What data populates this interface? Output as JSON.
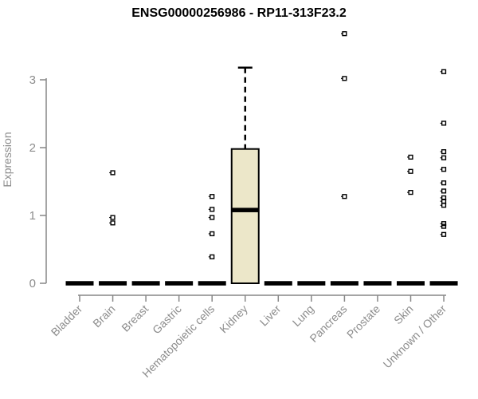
{
  "chart_data": {
    "type": "boxplot",
    "title": "ENSG00000256986 - RP11-313F23.2",
    "ylabel": "Expression",
    "xlabel": "",
    "ylim": [
      0,
      3.75
    ],
    "yticks": [
      0,
      1,
      2,
      3
    ],
    "grid": false,
    "legend": "none",
    "categories": [
      "Bladder",
      "Brain",
      "Breast",
      "Gastric",
      "Hematopoietic cells",
      "Kidney",
      "Liver",
      "Lung",
      "Pancreas",
      "Prostate",
      "Skin",
      "Unknown / Other"
    ],
    "series": [
      {
        "category": "Bladder",
        "low": 0,
        "q1": 0,
        "median": 0,
        "q3": 0,
        "high": 0,
        "outliers": []
      },
      {
        "category": "Brain",
        "low": 0,
        "q1": 0,
        "median": 0,
        "q3": 0,
        "high": 0,
        "outliers": [
          1.63,
          0.97,
          0.89
        ]
      },
      {
        "category": "Breast",
        "low": 0,
        "q1": 0,
        "median": 0,
        "q3": 0,
        "high": 0,
        "outliers": []
      },
      {
        "category": "Gastric",
        "low": 0,
        "q1": 0,
        "median": 0,
        "q3": 0,
        "high": 0,
        "outliers": []
      },
      {
        "category": "Hematopoietic cells",
        "low": 0,
        "q1": 0,
        "median": 0,
        "q3": 0,
        "high": 0,
        "outliers": [
          1.28,
          1.09,
          0.97,
          0.73,
          0.39
        ]
      },
      {
        "category": "Kidney",
        "low": 0,
        "q1": 0,
        "median": 1.08,
        "q3": 1.98,
        "high": 3.18,
        "outliers": []
      },
      {
        "category": "Liver",
        "low": 0,
        "q1": 0,
        "median": 0,
        "q3": 0,
        "high": 0,
        "outliers": []
      },
      {
        "category": "Lung",
        "low": 0,
        "q1": 0,
        "median": 0,
        "q3": 0,
        "high": 0,
        "outliers": []
      },
      {
        "category": "Pancreas",
        "low": 0,
        "q1": 0,
        "median": 0,
        "q3": 0,
        "high": 0,
        "outliers": [
          3.68,
          3.02,
          1.28
        ]
      },
      {
        "category": "Prostate",
        "low": 0,
        "q1": 0,
        "median": 0,
        "q3": 0,
        "high": 0,
        "outliers": []
      },
      {
        "category": "Skin",
        "low": 0,
        "q1": 0,
        "median": 0,
        "q3": 0,
        "high": 0,
        "outliers": [
          1.86,
          1.65,
          1.34
        ]
      },
      {
        "category": "Unknown / Other",
        "low": 0,
        "q1": 0,
        "median": 0,
        "q3": 0,
        "high": 0,
        "outliers": [
          3.12,
          2.36,
          1.94,
          1.85,
          1.68,
          1.48,
          1.36,
          1.26,
          1.21,
          1.15,
          0.88,
          0.84,
          0.72
        ]
      }
    ],
    "colors": {
      "box_fill": "#ece7c9",
      "box_stroke": "#000000",
      "median": "#000000",
      "whisker": "#000000",
      "outlier": "#000000",
      "axis": "#878787",
      "tick_label": "#8c8c8c",
      "title": "#000000",
      "background": "#ffffff"
    }
  }
}
